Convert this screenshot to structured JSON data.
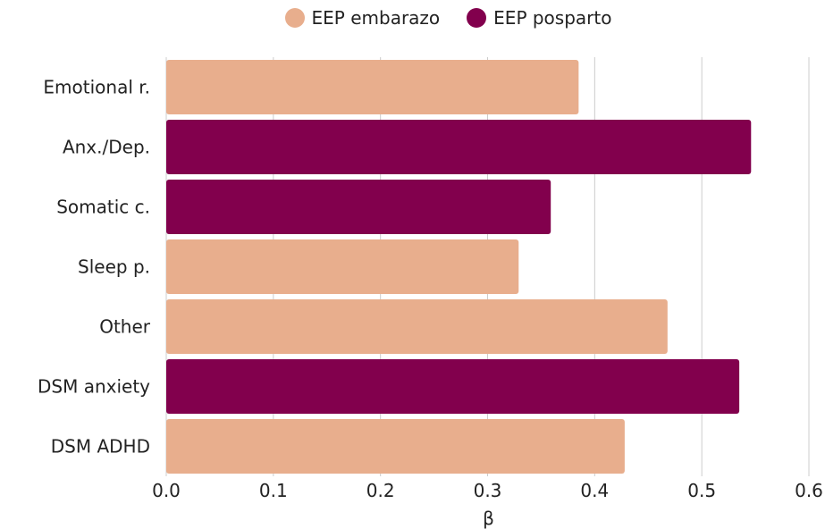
{
  "chart_data": {
    "type": "bar",
    "orientation": "horizontal",
    "categories": [
      "Emotional r.",
      "Anx./Dep.",
      "Somatic c.",
      "Sleep p.",
      "Other",
      "DSM anxiety",
      "DSM ADHD"
    ],
    "values": [
      0.385,
      0.546,
      0.359,
      0.329,
      0.468,
      0.535,
      0.428
    ],
    "bar_series": [
      "EEP embarazo",
      "EEP posparto",
      "EEP posparto",
      "EEP embarazo",
      "EEP embarazo",
      "EEP posparto",
      "EEP embarazo"
    ],
    "series": [
      {
        "name": "EEP embarazo",
        "color": "#E8AE8D"
      },
      {
        "name": "EEP posparto",
        "color": "#82004D"
      }
    ],
    "xlabel": "β",
    "ylabel": "",
    "xlim": [
      0,
      0.6
    ],
    "xticks": [
      "0.0",
      "0.1",
      "0.2",
      "0.3",
      "0.4",
      "0.5",
      "0.6"
    ],
    "grid": "vertical",
    "legend_position": "top"
  }
}
